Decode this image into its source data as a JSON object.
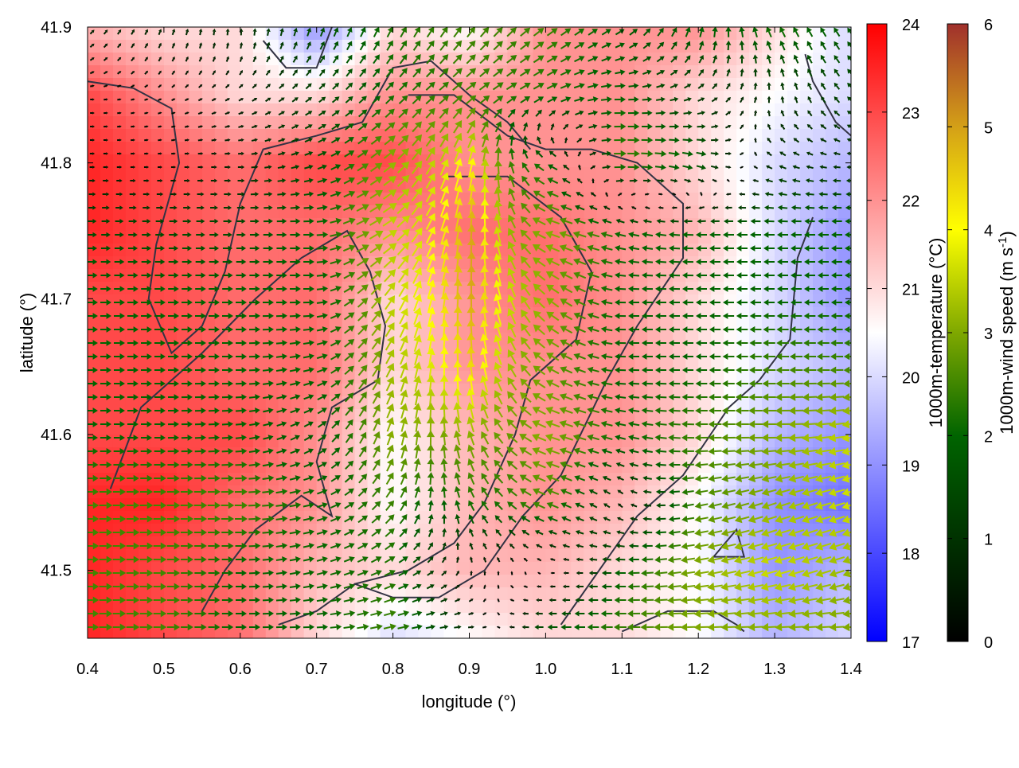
{
  "chart_data": {
    "type": "heatmap",
    "xlabel": "longitude (°)",
    "ylabel": "latitude (°)",
    "xlim": [
      0.4,
      1.4
    ],
    "ylim": [
      41.45,
      41.9
    ],
    "x_ticks": [
      "0.4",
      "0.5",
      "0.6",
      "0.7",
      "0.8",
      "0.9",
      "1.0",
      "1.1",
      "1.2",
      "1.3",
      "1.4"
    ],
    "y_ticks": [
      "41.5",
      "41.6",
      "41.7",
      "41.8",
      "41.9"
    ],
    "grid_lon": [
      0.4,
      0.5,
      0.6,
      0.7,
      0.8,
      0.9,
      1.0,
      1.1,
      1.2,
      1.3,
      1.4
    ],
    "grid_lat": [
      41.9,
      41.85,
      41.8,
      41.75,
      41.7,
      41.65,
      41.6,
      41.55,
      41.5,
      41.45
    ],
    "temperature": [
      [
        21.5,
        21,
        21,
        19,
        21,
        20.5,
        22,
        22,
        22,
        21,
        20
      ],
      [
        23,
        22,
        21,
        21,
        22,
        22,
        22,
        22,
        21,
        20.5,
        20
      ],
      [
        23.5,
        23,
        22.5,
        23,
        23,
        22,
        22,
        22,
        21,
        20,
        19.5
      ],
      [
        23.5,
        23,
        22.5,
        22.5,
        22,
        22.5,
        22.5,
        22,
        21.5,
        20,
        19
      ],
      [
        23,
        23,
        22.5,
        22.5,
        21,
        22,
        22.5,
        22,
        21,
        20,
        19
      ],
      [
        23,
        23,
        22.5,
        22.5,
        21,
        22,
        22,
        22,
        21,
        20,
        19.5
      ],
      [
        23,
        23,
        23,
        22,
        20.5,
        21.5,
        22,
        22,
        21,
        19.5,
        19
      ],
      [
        23.5,
        23.5,
        22.5,
        22,
        20.5,
        21.5,
        22,
        21.5,
        20.5,
        19,
        18.5
      ],
      [
        23.5,
        23,
        22.5,
        21.5,
        21,
        21.5,
        21.5,
        21,
        20.5,
        19,
        19.5
      ],
      [
        23.5,
        23,
        22.5,
        21,
        20,
        20.5,
        21,
        21,
        20.5,
        19.5,
        20
      ]
    ],
    "wind_u": [
      [
        0.5,
        0.3,
        0,
        0.5,
        1,
        1.5,
        2,
        1.5,
        0.5,
        -1,
        -1
      ],
      [
        0.3,
        0.2,
        0.5,
        1,
        1.5,
        2,
        2,
        2,
        1,
        0,
        -1
      ],
      [
        0.5,
        0.3,
        0.8,
        1.5,
        2.5,
        1,
        -2,
        2.5,
        2,
        -1,
        -1
      ],
      [
        1.5,
        1.5,
        1.5,
        2,
        3,
        0.5,
        -3,
        -2,
        -2,
        -2,
        -2
      ],
      [
        2,
        2,
        2,
        2,
        2,
        0,
        -2.5,
        -2,
        -2,
        -2,
        -2
      ],
      [
        2,
        2,
        2,
        2,
        1.5,
        -0.5,
        -2.5,
        -2,
        -2,
        -2.5,
        -2.5
      ],
      [
        2,
        2,
        2,
        1.5,
        1,
        -1,
        -3,
        -2,
        -2.5,
        -3,
        -3.5
      ],
      [
        2.5,
        2.5,
        2.5,
        2,
        1.5,
        -1,
        -2.5,
        -0.5,
        -2.5,
        -3,
        -3.5
      ],
      [
        2.5,
        2.5,
        2,
        2,
        2,
        0,
        0,
        -2,
        -3,
        -3.5,
        -3
      ],
      [
        2.5,
        2.5,
        2,
        2,
        2.5,
        1,
        -2,
        -2.5,
        -3,
        -3,
        -3
      ]
    ],
    "wind_v": [
      [
        0.5,
        0.8,
        1,
        1.5,
        2,
        2,
        1.5,
        1,
        2,
        2,
        1.5
      ],
      [
        0,
        0.1,
        0.3,
        0.8,
        1.5,
        1.5,
        1,
        0,
        0.5,
        1,
        1
      ],
      [
        0,
        0,
        0,
        0.5,
        2,
        4,
        1,
        0,
        -0.5,
        0.5,
        0
      ],
      [
        0,
        0,
        0,
        0,
        2,
        5,
        1,
        0.5,
        0,
        0,
        0
      ],
      [
        0,
        0,
        0,
        0,
        3,
        5,
        2,
        0,
        0,
        0,
        0
      ],
      [
        0,
        0,
        0,
        0.5,
        3,
        4.5,
        1.5,
        0,
        0,
        0,
        0
      ],
      [
        0,
        0,
        0.2,
        1,
        3,
        3,
        1,
        0.5,
        0,
        0,
        -0.5
      ],
      [
        0,
        0,
        0,
        0.5,
        2,
        2,
        1,
        0.5,
        -0.5,
        -1,
        -1
      ],
      [
        0,
        0,
        0,
        0.5,
        1,
        0.5,
        0,
        0,
        -0.5,
        -1,
        -1
      ],
      [
        0,
        0,
        0,
        0,
        0.5,
        0,
        0,
        0,
        0,
        0,
        0
      ]
    ],
    "contour_lines": [
      [
        [
          0.43,
          41.56
        ],
        [
          0.47,
          41.62
        ],
        [
          0.55,
          41.66
        ],
        [
          0.62,
          41.7
        ],
        [
          0.68,
          41.73
        ],
        [
          0.74,
          41.75
        ],
        [
          0.77,
          41.72
        ],
        [
          0.79,
          41.68
        ],
        [
          0.78,
          41.64
        ],
        [
          0.72,
          41.62
        ],
        [
          0.7,
          41.58
        ],
        [
          0.72,
          41.54
        ],
        [
          0.68,
          41.555
        ],
        [
          0.62,
          41.53
        ],
        [
          0.58,
          41.5
        ],
        [
          0.55,
          41.47
        ]
      ],
      [
        [
          0.4,
          41.86
        ],
        [
          0.46,
          41.855
        ],
        [
          0.51,
          41.84
        ],
        [
          0.52,
          41.8
        ],
        [
          0.49,
          41.74
        ],
        [
          0.48,
          41.7
        ],
        [
          0.51,
          41.66
        ],
        [
          0.55,
          41.68
        ],
        [
          0.58,
          41.72
        ],
        [
          0.6,
          41.77
        ],
        [
          0.63,
          41.81
        ],
        [
          0.7,
          41.82
        ],
        [
          0.76,
          41.83
        ],
        [
          0.8,
          41.87
        ],
        [
          0.85,
          41.875
        ],
        [
          0.9,
          41.85
        ],
        [
          0.95,
          41.83
        ],
        [
          0.98,
          41.81
        ]
      ],
      [
        [
          0.82,
          41.85
        ],
        [
          0.88,
          41.85
        ],
        [
          0.95,
          41.82
        ],
        [
          1.0,
          41.81
        ],
        [
          1.06,
          41.81
        ],
        [
          1.12,
          41.8
        ],
        [
          1.18,
          41.77
        ],
        [
          1.18,
          41.73
        ],
        [
          1.12,
          41.68
        ],
        [
          1.08,
          41.64
        ],
        [
          1.02,
          41.57
        ],
        [
          0.97,
          41.54
        ],
        [
          0.92,
          41.5
        ],
        [
          0.86,
          41.48
        ],
        [
          0.8,
          41.48
        ],
        [
          0.75,
          41.49
        ],
        [
          0.7,
          41.47
        ],
        [
          0.65,
          41.46
        ]
      ],
      [
        [
          0.87,
          41.79
        ],
        [
          0.95,
          41.79
        ],
        [
          1.02,
          41.76
        ],
        [
          1.06,
          41.72
        ],
        [
          1.04,
          41.67
        ],
        [
          0.98,
          41.64
        ],
        [
          0.96,
          41.6
        ],
        [
          0.92,
          41.55
        ],
        [
          0.88,
          41.52
        ],
        [
          0.82,
          41.5
        ],
        [
          0.75,
          41.49
        ]
      ],
      [
        [
          1.02,
          41.46
        ],
        [
          1.07,
          41.5
        ],
        [
          1.12,
          41.54
        ],
        [
          1.18,
          41.57
        ],
        [
          1.24,
          41.62
        ],
        [
          1.28,
          41.64
        ],
        [
          1.32,
          41.67
        ],
        [
          1.33,
          41.73
        ],
        [
          1.35,
          41.76
        ]
      ],
      [
        [
          1.1,
          41.455
        ],
        [
          1.16,
          41.47
        ],
        [
          1.22,
          41.47
        ],
        [
          1.25,
          41.46
        ],
        [
          1.26,
          41.455
        ]
      ],
      [
        [
          1.22,
          41.51
        ],
        [
          1.25,
          41.53
        ],
        [
          1.26,
          41.51
        ],
        [
          1.22,
          41.51
        ]
      ],
      [
        [
          0.63,
          41.89
        ],
        [
          0.66,
          41.87
        ],
        [
          0.7,
          41.87
        ],
        [
          0.72,
          41.9
        ]
      ],
      [
        [
          1.34,
          41.88
        ],
        [
          1.35,
          41.86
        ],
        [
          1.38,
          41.83
        ],
        [
          1.4,
          41.82
        ]
      ]
    ],
    "colorbars": [
      {
        "label": "1000m-temperature (°C)",
        "range": [
          17,
          24
        ],
        "ticks": [
          "17",
          "18",
          "19",
          "20",
          "21",
          "22",
          "23",
          "24"
        ],
        "colors": [
          "#0000ff",
          "#ffffff",
          "#ff0000"
        ]
      },
      {
        "label": "1000m-wind speed (m s",
        "label_sup": "-1",
        "label_end": ")",
        "range": [
          0,
          6
        ],
        "ticks": [
          "0",
          "1",
          "2",
          "3",
          "4",
          "5",
          "6"
        ],
        "colors": [
          "#000000",
          "#006400",
          "#7fa800",
          "#ffff00",
          "#d4a017",
          "#a0302c"
        ]
      }
    ]
  }
}
